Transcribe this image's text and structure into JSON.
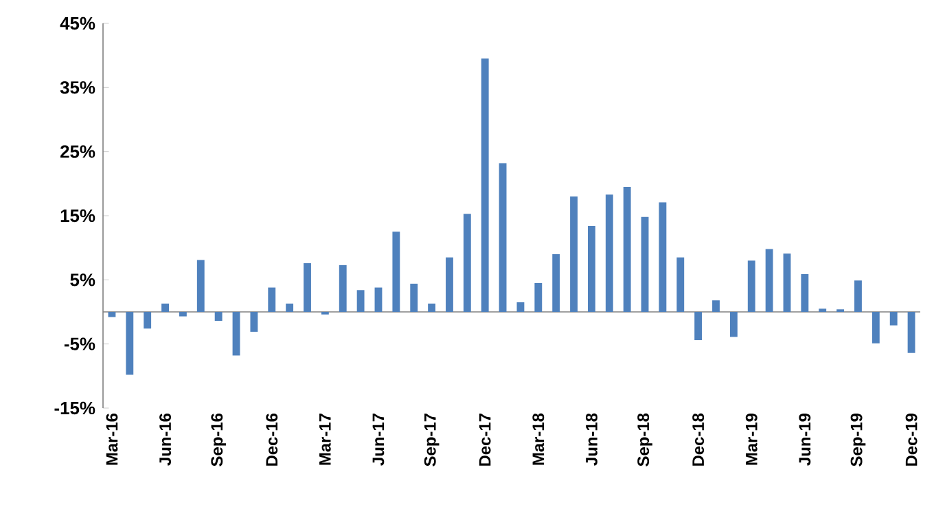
{
  "chart_data": {
    "type": "bar",
    "categories": [
      "Mar-16",
      null,
      null,
      "Jun-16",
      null,
      null,
      "Sep-16",
      null,
      null,
      "Dec-16",
      null,
      null,
      "Mar-17",
      null,
      null,
      "Jun-17",
      null,
      null,
      "Sep-17",
      null,
      null,
      "Dec-17",
      null,
      null,
      "Mar-18",
      null,
      null,
      "Jun-18",
      null,
      null,
      "Sep-18",
      null,
      null,
      "Dec-18",
      null,
      null,
      "Mar-19",
      null,
      null,
      "Jun-19",
      null,
      null,
      "Sep-19",
      null,
      null,
      "Dec-19"
    ],
    "values": [
      -0.8,
      -9.8,
      -2.6,
      1.3,
      -0.7,
      8.1,
      -1.4,
      -6.8,
      -3.1,
      3.8,
      1.3,
      7.6,
      -0.4,
      7.3,
      3.4,
      3.8,
      12.5,
      4.4,
      1.3,
      8.5,
      15.3,
      39.5,
      23.2,
      1.5,
      4.5,
      9.0,
      18.0,
      13.4,
      18.3,
      19.5,
      14.8,
      17.1,
      8.5,
      -4.4,
      1.8,
      -3.9,
      8.0,
      9.8,
      9.1,
      5.9,
      0.5,
      0.4,
      4.9,
      -4.9,
      -2.1,
      -6.4
    ],
    "color": "#4f81bd",
    "ylim": [
      -15,
      45
    ],
    "yticks": [
      {
        "value": -15,
        "label": "-15%"
      },
      {
        "value": -5,
        "label": "-5%"
      },
      {
        "value": 5,
        "label": "5%"
      },
      {
        "value": 15,
        "label": "15%"
      },
      {
        "value": 25,
        "label": "25%"
      },
      {
        "value": 35,
        "label": "35%"
      },
      {
        "value": 45,
        "label": "45%"
      }
    ]
  }
}
